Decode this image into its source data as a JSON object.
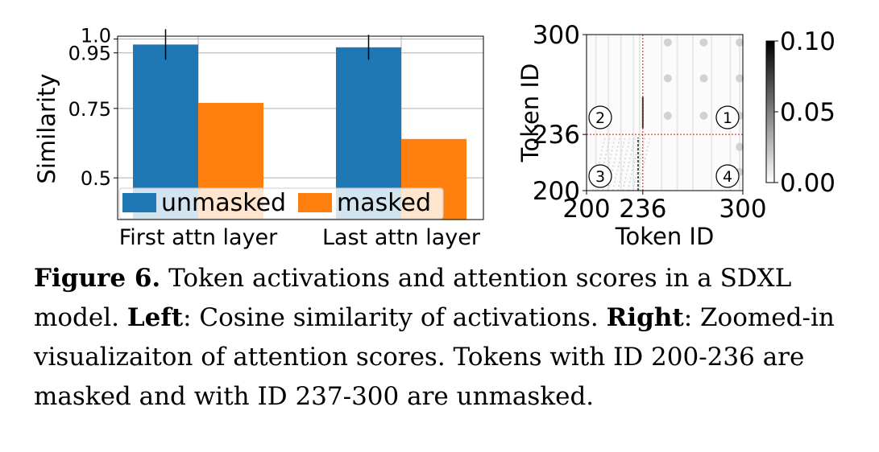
{
  "chart_data": [
    {
      "type": "bar",
      "title": "",
      "ylabel": "Similarity",
      "xlabel": "",
      "categories": [
        "First attn layer",
        "Last attn layer"
      ],
      "series": [
        {
          "name": "unmasked",
          "values": [
            0.98,
            0.97
          ],
          "error": [
            0.055,
            0.045
          ],
          "color": "#1f77b4"
        },
        {
          "name": "masked",
          "values": [
            0.77,
            0.64
          ],
          "color": "#ff7f0e"
        }
      ],
      "yticks": [
        0.5,
        0.75,
        0.95,
        1.0
      ],
      "ytick_labels": [
        "0.5",
        "0.75",
        "0.95",
        "1.0"
      ],
      "ylim": [
        0.35,
        1.01
      ],
      "grid": true,
      "legend_position": "bottom"
    },
    {
      "type": "heatmap",
      "title": "",
      "xlabel": "Token ID",
      "ylabel": "Token ID",
      "xticks": [
        200,
        236,
        300
      ],
      "yticks": [
        200,
        236,
        300
      ],
      "xlim": [
        200,
        300
      ],
      "ylim": [
        200,
        300
      ],
      "masked_range": [
        200,
        236
      ],
      "unmasked_range": [
        237,
        300
      ],
      "colorbar": {
        "min": 0.0,
        "max": 0.1,
        "ticks": [
          "0.00",
          "0.05",
          "0.10"
        ]
      },
      "quadrant_labels": [
        "1",
        "2",
        "3",
        "4"
      ],
      "divider_color": "#ff0000"
    }
  ],
  "caption": {
    "label": "Figure 6.",
    "text1": " Token activations and attention scores in a SDXL model. ",
    "left_label": "Left",
    "text2": ": Cosine similarity of activations. ",
    "right_label": "Right",
    "text3": ": Zoomed-in visualizaiton of attention scores. Tokens with ID 200-236 are masked and with ID 237-300 are unmasked."
  }
}
